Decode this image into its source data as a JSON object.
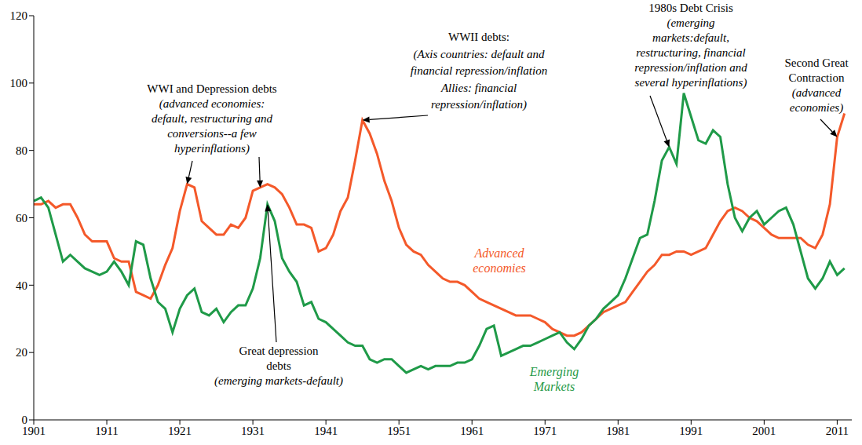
{
  "chart_data": {
    "type": "line",
    "x": [
      1901,
      1902,
      1903,
      1904,
      1905,
      1906,
      1907,
      1908,
      1909,
      1910,
      1911,
      1912,
      1913,
      1914,
      1915,
      1916,
      1917,
      1918,
      1919,
      1920,
      1921,
      1922,
      1923,
      1924,
      1925,
      1926,
      1927,
      1928,
      1929,
      1930,
      1931,
      1932,
      1933,
      1934,
      1935,
      1936,
      1937,
      1938,
      1939,
      1940,
      1941,
      1942,
      1943,
      1944,
      1945,
      1946,
      1947,
      1948,
      1949,
      1950,
      1951,
      1952,
      1953,
      1954,
      1955,
      1956,
      1957,
      1958,
      1959,
      1960,
      1961,
      1962,
      1963,
      1964,
      1965,
      1966,
      1967,
      1968,
      1969,
      1970,
      1971,
      1972,
      1973,
      1974,
      1975,
      1976,
      1977,
      1978,
      1979,
      1980,
      1981,
      1982,
      1983,
      1984,
      1985,
      1986,
      1987,
      1988,
      1989,
      1990,
      1991,
      1992,
      1993,
      1994,
      1995,
      1996,
      1997,
      1998,
      1999,
      2000,
      2001,
      2002,
      2003,
      2004,
      2005,
      2006,
      2007,
      2008,
      2009,
      2010,
      2011,
      2012
    ],
    "xlim": [
      1901,
      2013
    ],
    "xticks": [
      1901,
      1911,
      1921,
      1931,
      1941,
      1951,
      1961,
      1971,
      1981,
      1991,
      2001,
      2011
    ],
    "ylim": [
      0,
      120
    ],
    "yticks": [
      0,
      20,
      40,
      60,
      80,
      100,
      120
    ],
    "grid": false,
    "series": [
      {
        "name": "Advanced economies",
        "color": "#f4592a",
        "values": [
          64,
          64,
          65,
          63,
          64,
          64,
          60,
          55,
          53,
          53,
          53,
          48,
          47,
          47,
          38,
          37,
          36,
          40,
          46,
          51,
          62,
          70,
          69,
          59,
          57,
          55,
          55,
          58,
          57,
          60,
          68,
          69,
          70,
          69,
          67,
          63,
          58,
          58,
          57,
          50,
          51,
          55,
          62,
          66,
          77,
          89,
          85,
          79,
          71,
          65,
          57,
          52,
          50,
          49,
          46,
          44,
          42,
          41,
          41,
          40,
          38,
          36,
          35,
          34,
          33,
          32,
          31,
          31,
          31,
          30,
          29,
          27,
          26,
          25,
          25,
          26,
          28,
          30,
          32,
          33,
          34,
          35,
          38,
          41,
          44,
          46,
          49,
          49,
          50,
          50,
          49,
          50,
          51,
          55,
          59,
          62,
          63,
          62,
          60,
          59,
          57,
          55,
          54,
          54,
          54,
          54,
          52,
          51,
          55,
          64,
          84,
          91
        ]
      },
      {
        "name": "Emerging Markets",
        "color": "#1f9a48",
        "values": [
          65,
          66,
          63,
          55,
          47,
          49,
          47,
          45,
          44,
          43,
          44,
          47,
          44,
          40,
          53,
          52,
          42,
          35,
          33,
          26,
          33,
          37,
          39,
          32,
          31,
          33,
          29,
          32,
          34,
          34,
          39,
          48,
          64,
          59,
          48,
          44,
          41,
          34,
          35,
          30,
          29,
          27,
          25,
          23,
          22,
          22,
          18,
          17,
          18,
          18,
          16,
          14,
          15,
          16,
          15,
          16,
          16,
          16,
          17,
          17,
          18,
          22,
          27,
          28,
          19,
          20,
          21,
          22,
          22,
          23,
          24,
          25,
          26,
          23,
          21,
          24,
          28,
          30,
          33,
          35,
          37,
          42,
          48,
          54,
          55,
          65,
          77,
          81,
          76,
          97,
          90,
          83,
          82,
          86,
          84,
          70,
          60,
          56,
          60,
          62,
          58,
          60,
          62,
          63,
          58,
          50,
          42,
          39,
          42,
          47,
          43,
          45
        ]
      }
    ],
    "annotations": [
      {
        "title": [
          "WWI and Depression debts"
        ],
        "text": [
          "(advanced economies:",
          "default, restructuring and",
          "conversions--a few",
          "hyperinflations)"
        ],
        "points": [
          {
            "x": 1922,
            "y": 70
          },
          {
            "x": 1932,
            "y": 69
          }
        ]
      },
      {
        "title": [
          "Great depression",
          "debts"
        ],
        "text": [
          "(emerging markets-default)"
        ],
        "points": [
          {
            "x": 1933,
            "y": 64
          }
        ]
      },
      {
        "title": [
          "WWII debts:"
        ],
        "text": [
          "(Axis countries: default and",
          "financial repression/inflation",
          "Allies: financial",
          "repression/inflation)"
        ],
        "points": [
          {
            "x": 1946,
            "y": 89
          }
        ]
      },
      {
        "title": [
          "1980s Debt Crisis"
        ],
        "text": [
          "(emerging",
          "markets:default,",
          "restructuring, financial",
          "repression/inflation and",
          "several hyperinflations)"
        ],
        "points": [
          {
            "x": 1988,
            "y": 81
          }
        ]
      },
      {
        "title": [
          "Second Great",
          "Contraction"
        ],
        "text": [
          "(advanced",
          "economies)"
        ],
        "points": [
          {
            "x": 2011,
            "y": 84
          }
        ]
      }
    ]
  }
}
